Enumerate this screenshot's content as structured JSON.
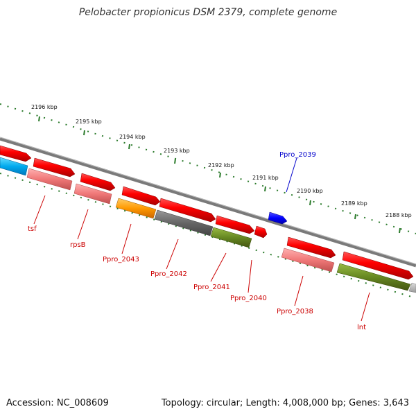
{
  "title": "Pelobacter propionicus DSM 2379, complete genome",
  "footer": {
    "accession": "Accession: NC_008609",
    "summary": "Topology: circular; Length: 4,008,000 bp; Genes: 3,643"
  },
  "colors": {
    "red": "#ff0000",
    "blue": "#0000ff",
    "pink": "#f07878",
    "orange": "#ff9900",
    "gray": "#666666",
    "olive": "#668822",
    "cyan": "#00aaee",
    "scale_green": "#2a7a2a"
  },
  "scale_labels": [
    "2196 kbp",
    "2195 kbp",
    "2194 kbp",
    "2193 kbp",
    "2192 kbp",
    "2191 kbp",
    "2190 kbp",
    "2189 kbp",
    "2188 kbp"
  ],
  "gene_labels": [
    {
      "text": "tsf",
      "color": "#cc0000"
    },
    {
      "text": "rpsB",
      "color": "#cc0000"
    },
    {
      "text": "Ppro_2043",
      "color": "#cc0000"
    },
    {
      "text": "Ppro_2042",
      "color": "#cc0000"
    },
    {
      "text": "Ppro_2041",
      "color": "#cc0000"
    },
    {
      "text": "Ppro_2040",
      "color": "#cc0000"
    },
    {
      "text": "Ppro_2038",
      "color": "#cc0000"
    },
    {
      "text": "lnt",
      "color": "#cc0000"
    },
    {
      "text": "Ppro_2039",
      "color": "#0000cc"
    }
  ]
}
